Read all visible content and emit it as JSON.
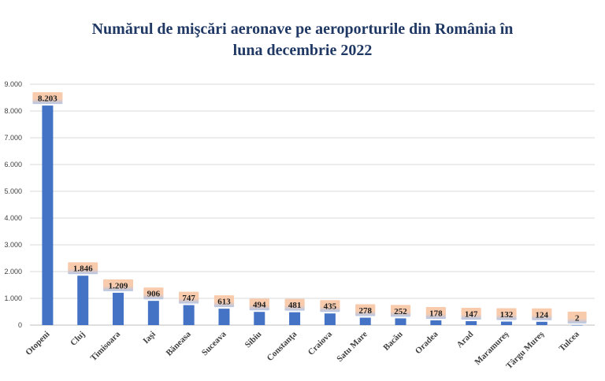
{
  "chart_data": {
    "type": "bar",
    "title_line1": "Numărul de mişcări aeronave pe aeroporturile din România în",
    "title_line2": "luna decembrie 2022",
    "categories": [
      "Otopeni",
      "Cluj",
      "Timisoara",
      "Iaşi",
      "Băneasa",
      "Suceava",
      "Sibiu",
      "Constanţa",
      "Craiova",
      "Satu Mare",
      "Bacău",
      "Oradea",
      "Arad",
      "Maramureş",
      "Târgu Mureş",
      "Tulcea"
    ],
    "values": [
      8203,
      1846,
      1209,
      906,
      747,
      613,
      494,
      481,
      435,
      278,
      252,
      178,
      147,
      132,
      124,
      2
    ],
    "data_labels": [
      "8.203",
      "1.846",
      "1.209",
      "906",
      "747",
      "613",
      "494",
      "481",
      "435",
      "278",
      "252",
      "178",
      "147",
      "132",
      "124",
      "2"
    ],
    "ylim": [
      0,
      9000
    ],
    "yticks": [
      0,
      1000,
      2000,
      3000,
      4000,
      5000,
      6000,
      7000,
      8000,
      9000
    ],
    "ytick_labels": [
      "0",
      "1.000",
      "2.000",
      "3.000",
      "4.000",
      "5.000",
      "6.000",
      "7.000",
      "8.000",
      "9.000"
    ],
    "grid": true,
    "bar_color": "#4472c4",
    "label_box_top_color": "#f8cbad",
    "label_box_bottom_color": "#b4c7e7",
    "title_color": "#1f3864"
  }
}
